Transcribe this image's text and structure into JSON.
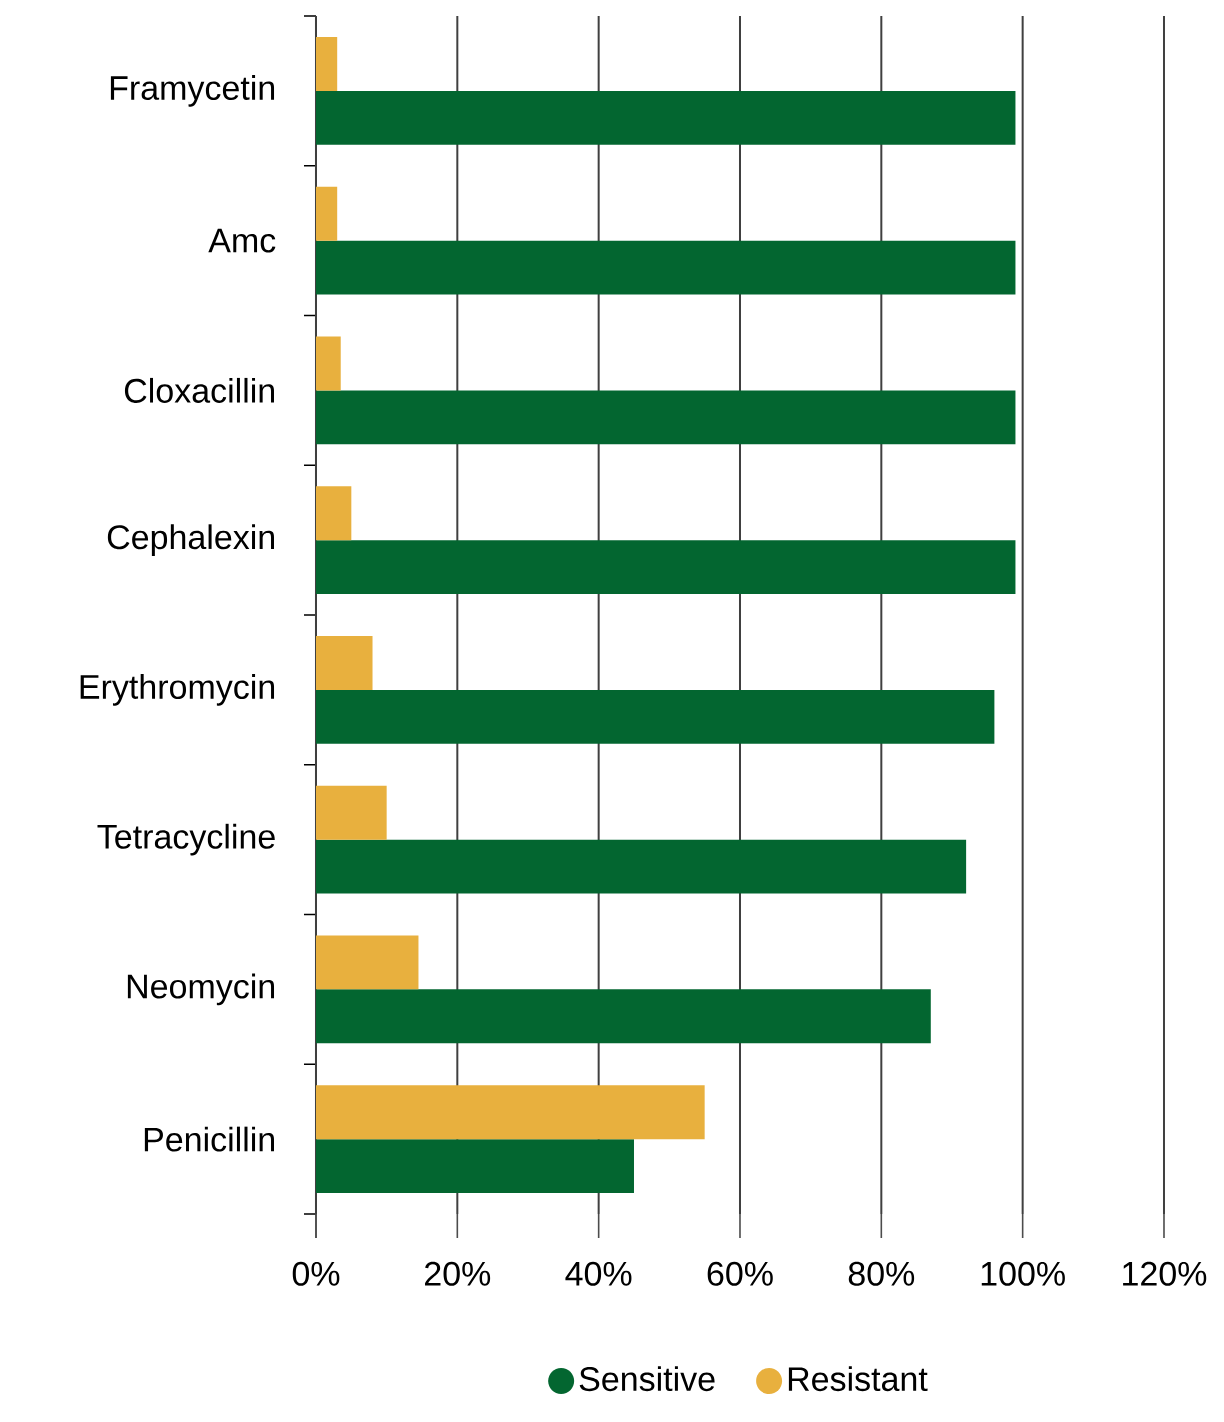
{
  "chart_data": {
    "type": "bar",
    "orientation": "horizontal",
    "categories": [
      "Framycetin",
      "Amc",
      "Cloxacillin",
      "Cephalexin",
      "Erythromycin",
      "Tetracycline",
      "Neomycin",
      "Penicillin"
    ],
    "series": [
      {
        "name": "Sensitive",
        "color": "#036630",
        "values": [
          99,
          99,
          99,
          99,
          96,
          92,
          87,
          45
        ]
      },
      {
        "name": "Resistant",
        "color": "#e8b03e",
        "values": [
          3,
          3,
          3.5,
          5,
          8,
          10,
          14.5,
          55
        ]
      }
    ],
    "xlim": [
      0,
      120
    ],
    "xticks": [
      {
        "value": 0,
        "label": "0%"
      },
      {
        "value": 20,
        "label": "20%"
      },
      {
        "value": 40,
        "label": "40%"
      },
      {
        "value": 60,
        "label": "60%"
      },
      {
        "value": 80,
        "label": "80%"
      },
      {
        "value": 100,
        "label": "100%"
      },
      {
        "value": 120,
        "label": "120%"
      }
    ],
    "grid": "x",
    "legend": "bottom"
  }
}
